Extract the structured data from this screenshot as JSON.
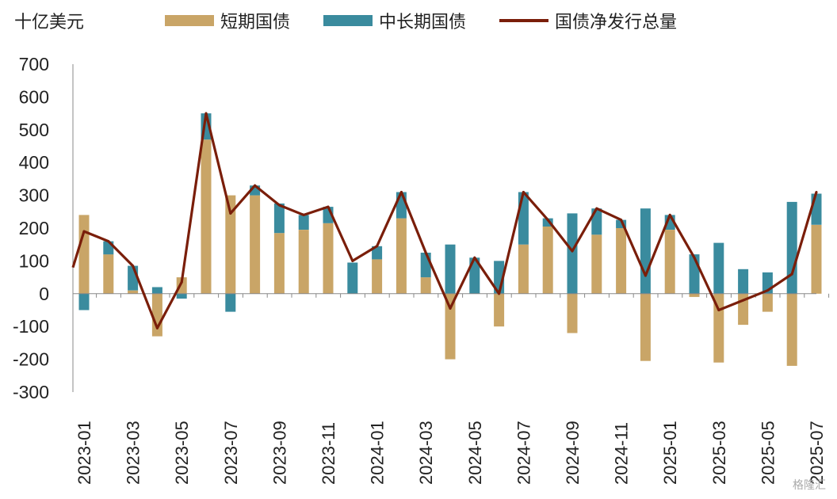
{
  "unit_label": "十亿美元",
  "watermark": "格隆汇",
  "colors": {
    "short": "#c9a567",
    "long": "#3a8b9e",
    "total": "#7a1e0a",
    "axis": "#888888",
    "text": "#222222"
  },
  "legend": {
    "short": "短期国债",
    "long": "中长期国债",
    "total": "国债净发行总量"
  },
  "chart_data": {
    "type": "bar",
    "stacked": true,
    "categories": [
      "2023-01",
      "2023-02",
      "2023-03",
      "2023-04",
      "2023-05",
      "2023-06",
      "2023-07",
      "2023-08",
      "2023-09",
      "2023-10",
      "2023-11",
      "2023-12",
      "2024-01",
      "2024-02",
      "2024-03",
      "2024-04",
      "2024-05",
      "2024-06",
      "2024-07",
      "2024-08",
      "2024-09",
      "2024-10",
      "2024-11",
      "2024-12",
      "2025-01",
      "2025-02",
      "2025-03",
      "2025-04",
      "2025-05",
      "2025-06",
      "2025-07"
    ],
    "x_tick_labels": [
      "2023-01",
      "2023-03",
      "2023-05",
      "2023-07",
      "2023-09",
      "2023-11",
      "2024-01",
      "2024-03",
      "2024-05",
      "2024-07",
      "2024-09",
      "2024-11",
      "2025-01",
      "2025-03",
      "2025-05",
      "2025-07"
    ],
    "series": [
      {
        "name": "短期国债",
        "key": "short",
        "kind": "bar",
        "values": [
          240,
          120,
          10,
          -130,
          50,
          470,
          300,
          300,
          185,
          195,
          215,
          0,
          105,
          230,
          50,
          -200,
          0,
          -100,
          150,
          205,
          -120,
          180,
          200,
          -205,
          195,
          -10,
          -210,
          -95,
          -55,
          -220,
          210
        ]
      },
      {
        "name": "中长期国债",
        "key": "long",
        "kind": "bar",
        "values": [
          -50,
          40,
          75,
          20,
          -15,
          80,
          -55,
          30,
          90,
          45,
          50,
          95,
          40,
          80,
          75,
          150,
          110,
          100,
          160,
          25,
          245,
          80,
          25,
          260,
          45,
          120,
          155,
          75,
          65,
          280,
          95
        ]
      },
      {
        "name": "国债净发行总量",
        "key": "total",
        "kind": "line",
        "values": [
          190,
          160,
          85,
          -105,
          35,
          550,
          245,
          330,
          270,
          240,
          265,
          100,
          145,
          310,
          125,
          -45,
          110,
          0,
          310,
          225,
          130,
          260,
          225,
          55,
          240,
          110,
          -50,
          -20,
          10,
          60,
          310
        ]
      }
    ],
    "ylim": [
      -300,
      700
    ],
    "y_ticks": [
      "700",
      "600",
      "500",
      "400",
      "300",
      "200",
      "100",
      "0",
      "-100",
      "-200",
      "-300"
    ],
    "grid": false,
    "legend_position": "top"
  }
}
